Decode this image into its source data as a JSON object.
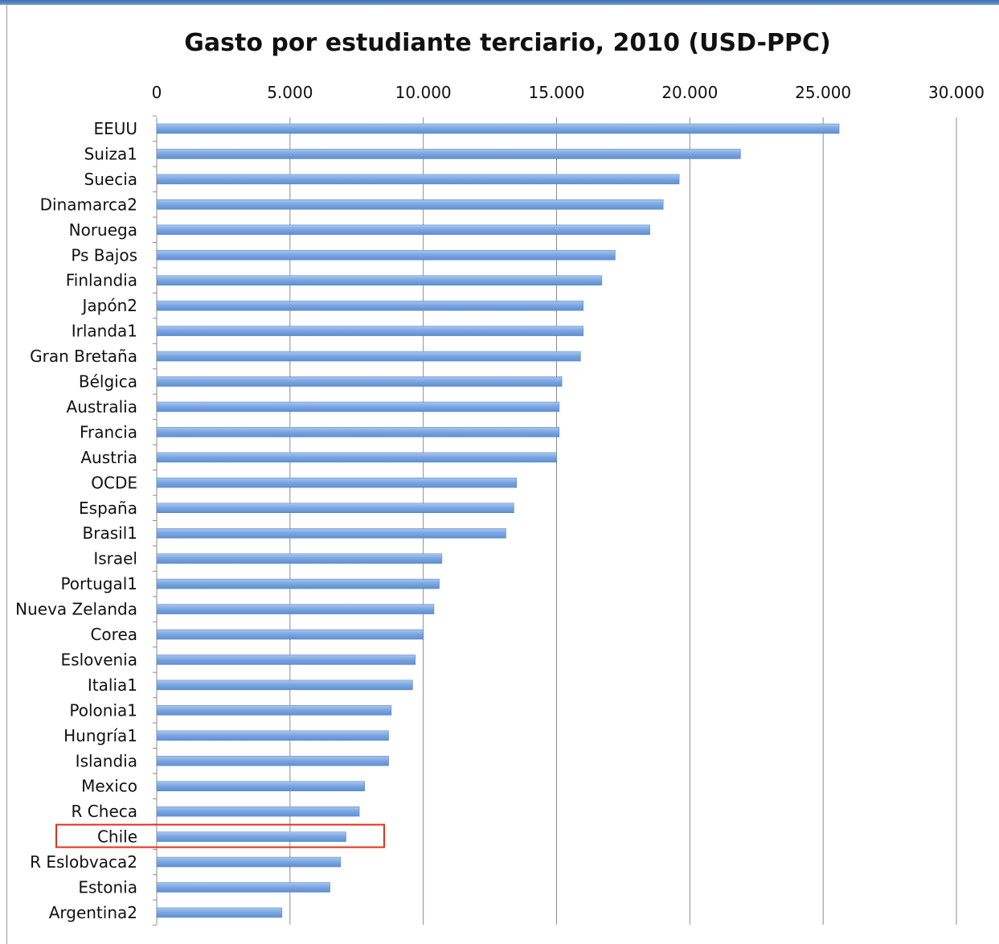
{
  "colors": {
    "bar": "#7aa5e0",
    "bar_edge": "#4f7fc4",
    "grid": "#8c8c8c",
    "axis_text": "#111111",
    "highlight": "#e0301e",
    "window_bar": "#4a78b5"
  },
  "chart_data": {
    "type": "bar",
    "orientation": "horizontal",
    "title": "Gasto por estudiante terciario, 2010 (USD-PPC)",
    "xlabel": "",
    "ylabel": "",
    "xlim": [
      0,
      30000
    ],
    "x_ticks": [
      0,
      5000,
      10000,
      15000,
      20000,
      25000,
      30000
    ],
    "x_tick_labels": [
      "0",
      "5.000",
      "10.000",
      "15.000",
      "20.000",
      "25.000",
      "30.000"
    ],
    "x_axis_position": "top",
    "grid": true,
    "legend": "none",
    "highlighted_category": "Chile",
    "categories": [
      "EEUU",
      "Suiza1",
      "Suecia",
      "Dinamarca2",
      "Noruega",
      "Ps Bajos",
      "Finlandia",
      "Japón2",
      "Irlanda1",
      "Gran Bretaña",
      "Bélgica",
      "Australia",
      "Francia",
      "Austria",
      "OCDE",
      "España",
      "Brasil1",
      "Israel",
      "Portugal1",
      "Nueva Zelanda",
      "Corea",
      "Eslovenia",
      "Italia1",
      "Polonia1",
      "Hungría1",
      "Islandia",
      "Mexico",
      "R Checa",
      "Chile",
      "R Eslobvaca2",
      "Estonia",
      "Argentina2"
    ],
    "values": [
      25600,
      21900,
      19600,
      19000,
      18500,
      17200,
      16700,
      16000,
      16000,
      15900,
      15200,
      15100,
      15100,
      15000,
      13500,
      13400,
      13100,
      10700,
      10600,
      10400,
      10000,
      9700,
      9600,
      8800,
      8700,
      8700,
      7800,
      7600,
      7100,
      6900,
      6500,
      4700
    ]
  }
}
